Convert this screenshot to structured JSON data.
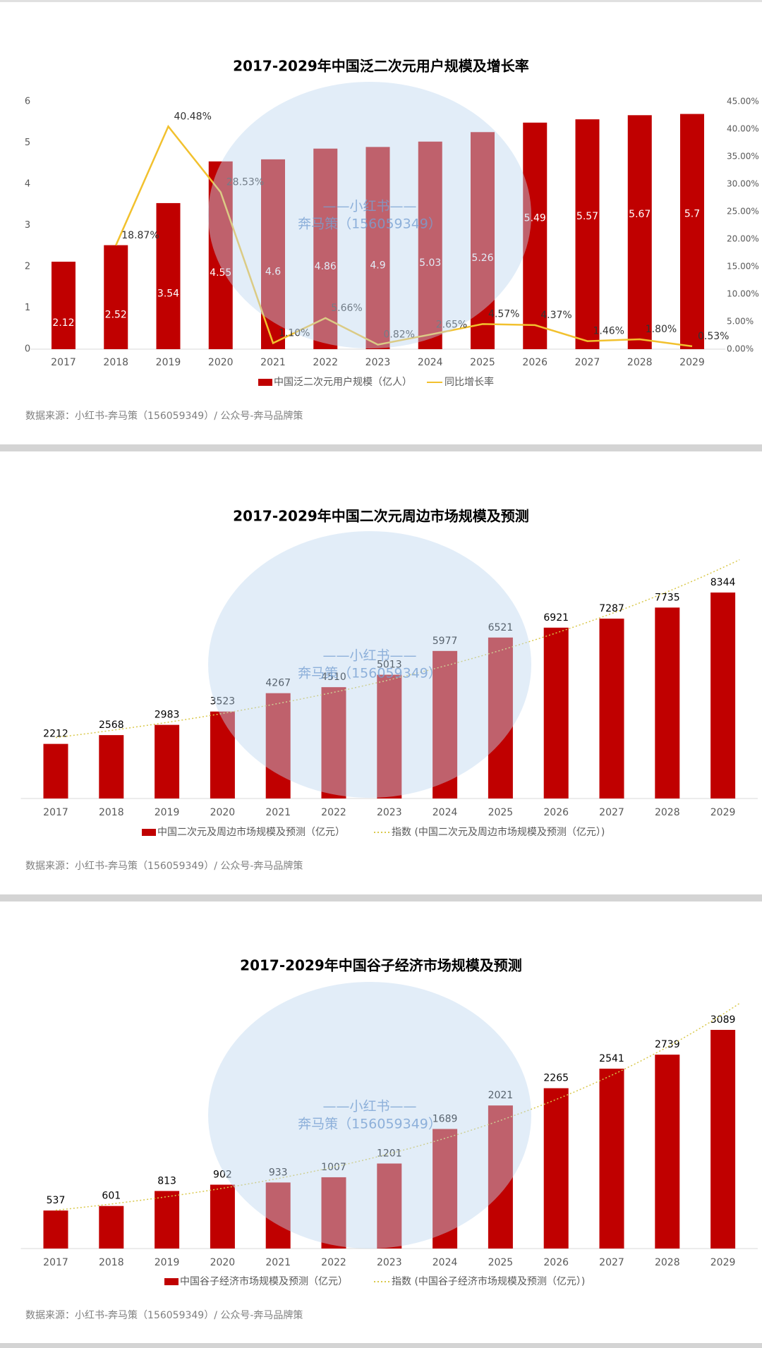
{
  "chart_data": [
    {
      "type": "bar",
      "title": "2017-2029年中国泛二次元用户规模及增长率",
      "categories": [
        "2017",
        "2018",
        "2019",
        "2020",
        "2021",
        "2022",
        "2023",
        "2024",
        "2025",
        "2026",
        "2027",
        "2028",
        "2029"
      ],
      "series": [
        {
          "name": "中国泛二次元用户规模（亿人）",
          "color": "#c00000",
          "values": [
            2.12,
            2.52,
            3.54,
            4.55,
            4.6,
            4.86,
            4.9,
            5.03,
            5.26,
            5.49,
            5.57,
            5.67,
            5.7
          ]
        },
        {
          "name": "同比增长率",
          "color": "#f2c12e",
          "type": "line",
          "axis": "y2",
          "values": [
            null,
            18.87,
            40.48,
            28.53,
            1.1,
            5.66,
            0.82,
            2.65,
            4.57,
            4.37,
            1.46,
            1.8,
            0.53
          ],
          "value_labels": [
            null,
            "18.87%",
            "40.48%",
            "28.53%",
            "1.10%",
            "5.66%",
            "0.82%",
            "2.65%",
            "4.57%",
            "4.37%",
            "1.46%",
            "1.80%",
            "0.53%"
          ]
        }
      ],
      "ylim": [
        0,
        6
      ],
      "yticks": [
        0,
        1,
        2,
        3,
        4,
        5,
        6
      ],
      "y2lim": [
        0,
        45
      ],
      "y2ticks": [
        {
          "value": 0,
          "label": "0.00%"
        },
        {
          "value": 5,
          "label": "5.00%"
        },
        {
          "value": 10,
          "label": "10.00%"
        },
        {
          "value": 15,
          "label": "15.00%"
        },
        {
          "value": 20,
          "label": "20.00%"
        },
        {
          "value": 25,
          "label": "25.00%"
        },
        {
          "value": 30,
          "label": "30.00%"
        },
        {
          "value": 35,
          "label": "35.00%"
        },
        {
          "value": 40,
          "label": "40.00%"
        },
        {
          "value": 45,
          "label": "45.00%"
        }
      ],
      "source": "数据来源：小红书-奔马策（156059349）/ 公众号-奔马品牌策",
      "watermark": [
        "——小红书——",
        "奔马策（156059349）"
      ]
    },
    {
      "type": "bar",
      "title": "2017-2029年中国二次元周边市场规模及预测",
      "categories": [
        "2017",
        "2018",
        "2019",
        "2020",
        "2021",
        "2022",
        "2023",
        "2024",
        "2025",
        "2026",
        "2027",
        "2028",
        "2029"
      ],
      "series": [
        {
          "name": "中国二次元及周边市场规模及预测（亿元）",
          "color": "#c00000",
          "values": [
            2212,
            2568,
            2983,
            3523,
            4267,
            4510,
            5013,
            5977,
            6521,
            6921,
            7287,
            7735,
            8344
          ]
        }
      ],
      "trendline": {
        "name": "指数 (中国二次元及周边市场规模及预测（亿元）)",
        "type": "exponential",
        "color": "#d9c84a"
      },
      "source": "数据来源：小红书-奔马策（156059349）/ 公众号-奔马品牌策",
      "watermark": [
        "——小红书——",
        "奔马策（156059349）"
      ]
    },
    {
      "type": "bar",
      "title": "2017-2029年中国谷子经济市场规模及预测",
      "categories": [
        "2017",
        "2018",
        "2019",
        "2020",
        "2021",
        "2022",
        "2023",
        "2024",
        "2025",
        "2026",
        "2027",
        "2028",
        "2029"
      ],
      "series": [
        {
          "name": "中国谷子经济市场规模及预测（亿元）",
          "color": "#c00000",
          "values": [
            537,
            601,
            813,
            902,
            933,
            1007,
            1201,
            1689,
            2021,
            2265,
            2541,
            2739,
            3089
          ]
        }
      ],
      "trendline": {
        "name": "指数 (中国谷子经济市场规模及预测（亿元）)",
        "type": "exponential",
        "color": "#d9c84a"
      },
      "source": "数据来源：小红书-奔马策（156059349）/ 公众号-奔马品牌策",
      "watermark": [
        "——小红书——",
        "奔马策（156059349）"
      ]
    }
  ]
}
